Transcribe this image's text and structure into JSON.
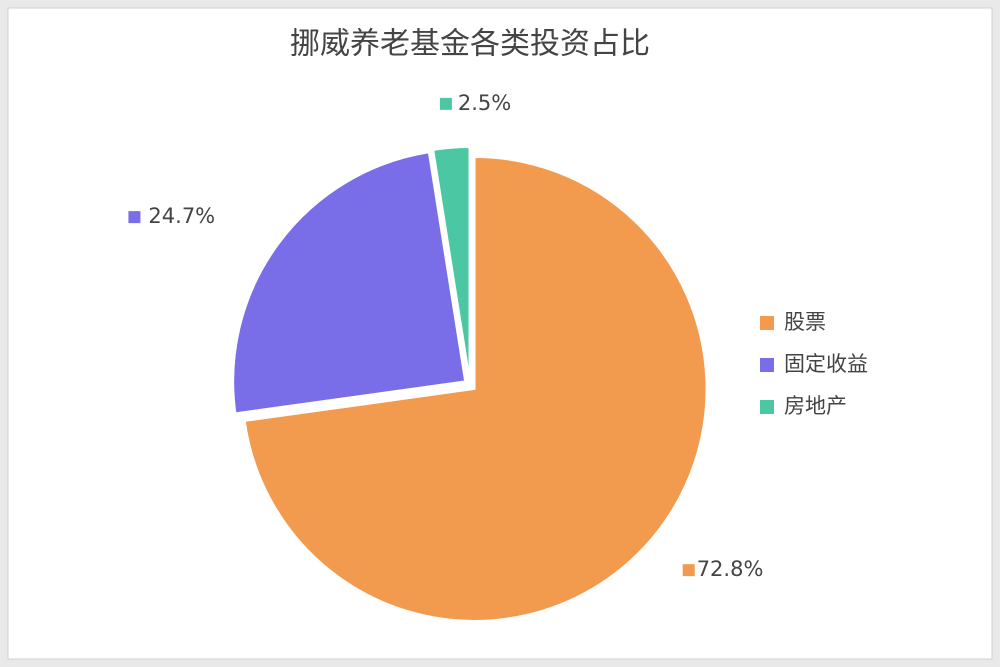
{
  "chart_data": {
    "type": "pie",
    "title": "挪威养老基金各类投资占比",
    "categories": [
      "股票",
      "固定收益",
      "房地产"
    ],
    "values": [
      72.8,
      24.7,
      2.5
    ],
    "value_labels": [
      "72.8%",
      "24.7%",
      "2.5%"
    ],
    "colors": [
      "#f29a4e",
      "#7a6ee8",
      "#4cc7a3"
    ],
    "legend": "right"
  }
}
